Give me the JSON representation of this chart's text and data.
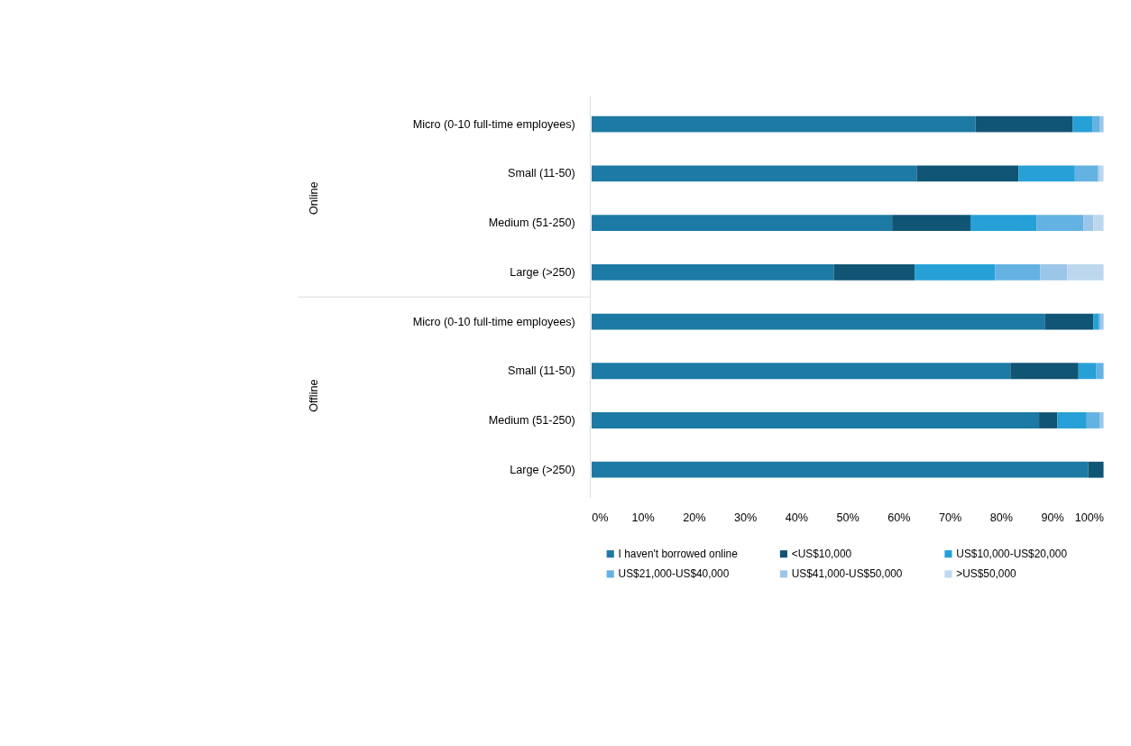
{
  "chart_data": {
    "type": "bar",
    "orientation": "horizontal",
    "stacked": true,
    "categories": [
      "Micro (0-10 full-time employees)",
      "Small (11-50)",
      "Medium (51-250)",
      "Large (>250)",
      "Micro (0-10 full-time employees)",
      "Small (11-50)",
      "Medium (51-250)",
      "Large (>250)"
    ],
    "series": [
      {
        "name": "I haven't borrowed online",
        "color": "#1c7aa4",
        "values": [
          75.0,
          63.5,
          58.7,
          47.3,
          88.5,
          81.8,
          87.4,
          97.0
        ]
      },
      {
        "name": "<US$10,000",
        "color": "#115574",
        "values": [
          19.0,
          19.9,
          15.3,
          15.8,
          9.5,
          13.3,
          3.6,
          3.0
        ]
      },
      {
        "name": "US$10,000-US$20,000",
        "color": "#26a0d7",
        "values": [
          3.8,
          11.0,
          12.9,
          15.7,
          1.1,
          3.5,
          5.7,
          0
        ]
      },
      {
        "name": "US$21,000-US$40,000",
        "color": "#63b2e2",
        "values": [
          1.5,
          4.5,
          9.2,
          8.8,
          0.3,
          1.4,
          2.5,
          0
        ]
      },
      {
        "name": "US$41,000-US$50,000",
        "color": "#9bc6e8",
        "values": [
          0.7,
          0.4,
          1.9,
          5.3,
          0.6,
          0,
          0.8,
          0
        ]
      },
      {
        "name": ">US$50,000",
        "color": "#bdd8ee",
        "values": [
          0,
          0.7,
          2.0,
          7.1,
          0,
          0,
          0,
          0
        ]
      }
    ],
    "xlim": [
      0,
      100
    ],
    "xticks": [
      {
        "value": 0,
        "label": "0%"
      },
      {
        "value": 10,
        "label": "10%"
      },
      {
        "value": 20,
        "label": "20%"
      },
      {
        "value": 30,
        "label": "30%"
      },
      {
        "value": 40,
        "label": "40%"
      },
      {
        "value": 50,
        "label": "50%"
      },
      {
        "value": 60,
        "label": "60%"
      },
      {
        "value": 70,
        "label": "70%"
      },
      {
        "value": 80,
        "label": "80%"
      },
      {
        "value": 90,
        "label": "90%"
      },
      {
        "value": 100,
        "label": "100%"
      }
    ],
    "annotations": [
      "Online",
      "Offline"
    ],
    "legend": "bottom",
    "grid": false
  }
}
